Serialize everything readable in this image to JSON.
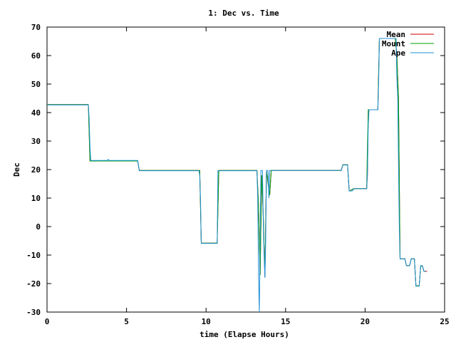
{
  "chart_data": {
    "type": "line",
    "title": "1: Dec vs. Time",
    "xlabel": "time (Elapse Hours)",
    "ylabel": "Dec",
    "xlim": [
      0,
      25
    ],
    "ylim": [
      -30,
      70
    ],
    "xticks": [
      0,
      5,
      10,
      15,
      20,
      25
    ],
    "yticks": [
      -30,
      -20,
      -10,
      0,
      10,
      20,
      30,
      40,
      50,
      60,
      70
    ],
    "grid": false,
    "legend_position": "top-right",
    "series": [
      {
        "name": "Mean",
        "color": "#cc0000",
        "points": [
          [
            0,
            42.8
          ],
          [
            2.6,
            42.8
          ],
          [
            2.7,
            23.0
          ],
          [
            5.7,
            23.0
          ],
          [
            5.8,
            19.7
          ],
          [
            9.6,
            19.7
          ],
          [
            9.7,
            -5.8
          ],
          [
            10.7,
            -5.8
          ],
          [
            10.8,
            19.7
          ],
          [
            13.2,
            19.7
          ],
          [
            13.3,
            7.0
          ],
          [
            13.4,
            -17.0
          ],
          [
            13.5,
            18.0
          ],
          [
            13.6,
            3.0
          ],
          [
            13.7,
            -17.5
          ],
          [
            13.8,
            19.7
          ],
          [
            14.0,
            11.0
          ],
          [
            14.1,
            19.7
          ],
          [
            18.5,
            19.7
          ],
          [
            18.6,
            21.7
          ],
          [
            18.9,
            21.7
          ],
          [
            19.0,
            12.5
          ],
          [
            19.3,
            13.3
          ],
          [
            20.1,
            13.3
          ],
          [
            20.15,
            18.0
          ],
          [
            20.2,
            41.0
          ],
          [
            20.8,
            41.0
          ],
          [
            20.9,
            66.0
          ],
          [
            21.9,
            66.0
          ],
          [
            22.0,
            60.0
          ],
          [
            22.1,
            45.0
          ],
          [
            22.2,
            -11.3
          ],
          [
            22.5,
            -11.3
          ],
          [
            22.6,
            -13.7
          ],
          [
            22.8,
            -13.7
          ],
          [
            22.9,
            -11.3
          ],
          [
            23.1,
            -11.3
          ],
          [
            23.2,
            -20.8
          ],
          [
            23.4,
            -20.8
          ],
          [
            23.5,
            -13.8
          ],
          [
            23.6,
            -13.8
          ],
          [
            23.7,
            -15.7
          ],
          [
            23.9,
            -15.7
          ]
        ]
      },
      {
        "name": "Mount",
        "color": "#00a000",
        "points": [
          [
            0,
            42.8
          ],
          [
            2.6,
            42.8
          ],
          [
            2.7,
            23.0
          ],
          [
            5.7,
            23.0
          ],
          [
            5.8,
            19.7
          ],
          [
            9.6,
            19.7
          ],
          [
            9.7,
            -5.8
          ],
          [
            10.7,
            -5.8
          ],
          [
            10.8,
            19.7
          ],
          [
            13.2,
            19.7
          ],
          [
            13.3,
            7.0
          ],
          [
            13.4,
            -17.0
          ],
          [
            13.5,
            18.0
          ],
          [
            13.6,
            3.0
          ],
          [
            13.7,
            -17.5
          ],
          [
            13.8,
            19.7
          ],
          [
            14.0,
            11.0
          ],
          [
            14.1,
            19.7
          ],
          [
            18.5,
            19.7
          ],
          [
            18.6,
            21.7
          ],
          [
            18.9,
            21.7
          ],
          [
            19.0,
            12.5
          ],
          [
            19.3,
            13.3
          ],
          [
            20.1,
            13.3
          ],
          [
            20.15,
            28.0
          ],
          [
            20.2,
            41.0
          ],
          [
            20.8,
            41.0
          ],
          [
            20.9,
            66.0
          ],
          [
            21.9,
            66.0
          ],
          [
            22.0,
            60.0
          ],
          [
            22.1,
            45.0
          ],
          [
            22.2,
            -11.3
          ],
          [
            22.5,
            -11.3
          ],
          [
            22.6,
            -13.7
          ],
          [
            22.8,
            -13.7
          ],
          [
            22.9,
            -11.3
          ],
          [
            23.1,
            -11.3
          ],
          [
            23.2,
            -20.8
          ],
          [
            23.4,
            -20.8
          ],
          [
            23.5,
            -13.8
          ],
          [
            23.6,
            -13.8
          ],
          [
            23.7,
            -15.7
          ],
          [
            23.8,
            -15.7
          ]
        ]
      },
      {
        "name": "Ape",
        "color": "#1f8fd8",
        "points": [
          [
            0,
            42.7
          ],
          [
            2.6,
            42.7
          ],
          [
            2.65,
            38.0
          ],
          [
            2.7,
            28.0
          ],
          [
            2.75,
            23.2
          ],
          [
            3.8,
            23.2
          ],
          [
            3.85,
            23.6
          ],
          [
            3.9,
            23.2
          ],
          [
            5.7,
            23.2
          ],
          [
            5.8,
            19.6
          ],
          [
            9.55,
            19.6
          ],
          [
            9.6,
            18.0
          ],
          [
            9.65,
            10.0
          ],
          [
            9.7,
            -5.9
          ],
          [
            10.7,
            -5.9
          ],
          [
            10.75,
            19.6
          ],
          [
            13.2,
            19.6
          ],
          [
            13.25,
            10.0
          ],
          [
            13.3,
            -18.0
          ],
          [
            13.35,
            -30.0
          ],
          [
            13.4,
            -5.0
          ],
          [
            13.45,
            19.7
          ],
          [
            13.55,
            19.7
          ],
          [
            13.6,
            0.0
          ],
          [
            13.65,
            -10.0
          ],
          [
            13.7,
            -18.0
          ],
          [
            13.75,
            -5.0
          ],
          [
            13.8,
            19.7
          ],
          [
            13.9,
            19.7
          ],
          [
            13.95,
            10.0
          ],
          [
            14.0,
            19.7
          ],
          [
            18.5,
            19.7
          ],
          [
            18.6,
            21.6
          ],
          [
            18.9,
            21.6
          ],
          [
            19.0,
            12.5
          ],
          [
            19.2,
            12.5
          ],
          [
            19.3,
            13.3
          ],
          [
            20.1,
            13.3
          ],
          [
            20.15,
            19.0
          ],
          [
            20.2,
            36.0
          ],
          [
            20.25,
            41.0
          ],
          [
            20.8,
            41.0
          ],
          [
            20.85,
            50.0
          ],
          [
            20.9,
            66.0
          ],
          [
            21.95,
            66.0
          ],
          [
            22.0,
            52.0
          ],
          [
            22.05,
            45.0
          ],
          [
            22.15,
            0.0
          ],
          [
            22.2,
            -11.3
          ],
          [
            22.5,
            -11.3
          ],
          [
            22.6,
            -13.7
          ],
          [
            22.8,
            -13.7
          ],
          [
            22.9,
            -11.3
          ],
          [
            23.1,
            -11.3
          ],
          [
            23.2,
            -20.9
          ],
          [
            23.4,
            -20.9
          ],
          [
            23.5,
            -13.7
          ],
          [
            23.6,
            -13.7
          ],
          [
            23.7,
            -15.7
          ],
          [
            23.8,
            -15.7
          ]
        ]
      }
    ]
  }
}
